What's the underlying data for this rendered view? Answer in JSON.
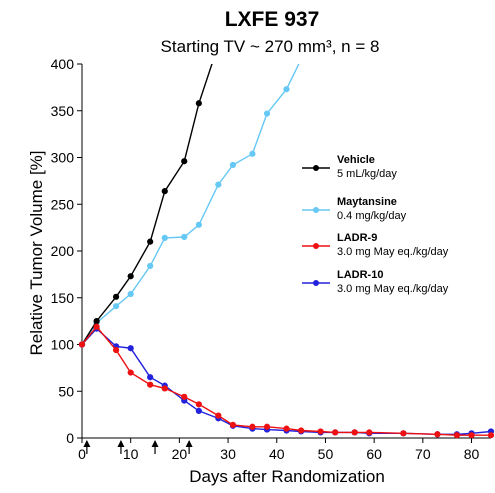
{
  "chart_data": {
    "type": "line",
    "title": "LXFE 937",
    "subtitle": "Starting TV ~ 270 mm³, n = 8",
    "xlabel": "Days after Randomization",
    "ylabel": "Relative Tumor Volume [%]",
    "xlim": [
      0,
      84
    ],
    "ylim": [
      0,
      400
    ],
    "xticks": [
      0,
      10,
      20,
      30,
      40,
      50,
      60,
      70,
      80
    ],
    "yticks": [
      0,
      50,
      100,
      150,
      200,
      250,
      300,
      350,
      400
    ],
    "dosing_days": [
      1,
      8,
      15,
      22
    ],
    "legend_position": "right",
    "series": [
      {
        "name": "Vehicle",
        "dose": "5 mL/kg/day",
        "color": "#000000",
        "x": [
          0,
          3,
          7,
          10,
          14,
          17,
          21,
          24,
          27
        ],
        "y": [
          100,
          125,
          151,
          173,
          210,
          264,
          296,
          358,
          405
        ]
      },
      {
        "name": "Maytansine",
        "dose": "0.4 mg/kg/day",
        "color": "#66c8f4",
        "x": [
          0,
          3,
          7,
          10,
          14,
          17,
          21,
          24,
          28,
          31,
          35,
          38,
          42,
          45
        ],
        "y": [
          100,
          123,
          141,
          154,
          184,
          214,
          215,
          228,
          271,
          292,
          304,
          347,
          373,
          405
        ]
      },
      {
        "name": "LADR-9",
        "dose": "3.0 mg May eq./kg/day",
        "color": "#ee1111",
        "x": [
          0,
          3,
          7,
          10,
          14,
          17,
          21,
          24,
          28,
          31,
          35,
          38,
          42,
          45,
          49,
          52,
          56,
          59,
          66,
          73,
          77,
          80,
          84
        ],
        "y": [
          100,
          119,
          94,
          70,
          57,
          53,
          44,
          36,
          24,
          14,
          12,
          12,
          10,
          8,
          7,
          6,
          6,
          6,
          5,
          4,
          3,
          3,
          3
        ]
      },
      {
        "name": "LADR-10",
        "dose": "3.0 mg May eq./kg/day",
        "color": "#2222dd",
        "x": [
          0,
          3,
          7,
          10,
          14,
          17,
          21,
          24,
          28,
          31,
          35,
          38,
          42,
          45,
          49,
          52,
          56,
          59,
          66,
          73,
          77,
          80,
          84
        ],
        "y": [
          100,
          117,
          98,
          96,
          65,
          56,
          40,
          29,
          21,
          13,
          10,
          9,
          8,
          7,
          6,
          6,
          6,
          5,
          5,
          4,
          4,
          5,
          7
        ]
      }
    ]
  }
}
